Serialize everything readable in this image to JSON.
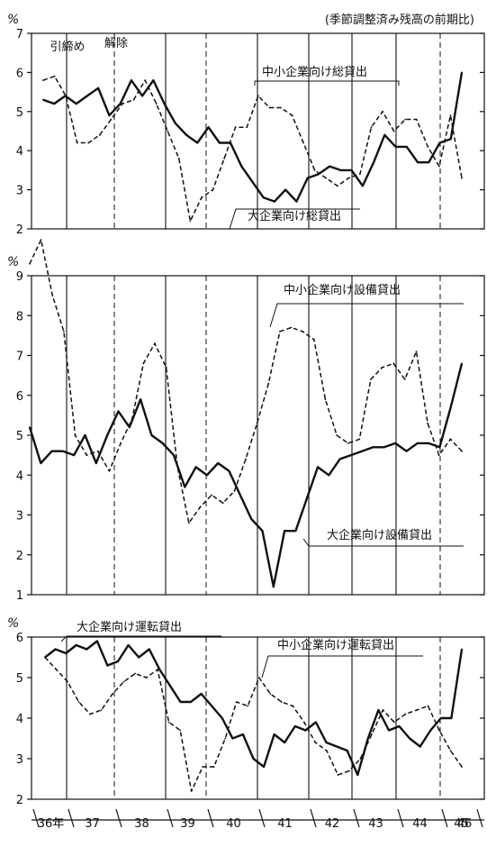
{
  "note": "(季節調整済み残高の前期比)",
  "chart_data": [
    {
      "type": "line",
      "title": "",
      "ylabel": "%",
      "ylim": [
        2,
        7
      ],
      "yticks": [
        2,
        3,
        4,
        5,
        6,
        7
      ],
      "event_labels": [
        "引締め",
        "解除"
      ],
      "series": [
        {
          "name": "中小企業向け総貸出",
          "style": "dashed",
          "values": [
            5.8,
            5.9,
            5.4,
            4.2,
            4.2,
            4.4,
            4.8,
            5.2,
            5.3,
            5.8,
            5.2,
            4.5,
            3.8,
            2.2,
            2.8,
            3.0,
            3.8,
            4.6,
            4.6,
            5.4,
            5.1,
            5.1,
            4.9,
            4.2,
            3.5,
            3.3,
            3.1,
            3.3,
            3.4,
            4.6,
            5.0,
            4.5,
            4.8,
            4.8,
            4.1,
            3.6,
            4.9,
            3.3
          ]
        },
        {
          "name": "大企業向け総貸出",
          "style": "solid",
          "values": [
            5.3,
            5.2,
            5.4,
            5.2,
            5.4,
            5.6,
            4.9,
            5.2,
            5.8,
            5.4,
            5.8,
            5.2,
            4.7,
            4.4,
            4.2,
            4.6,
            4.2,
            4.2,
            3.6,
            3.2,
            2.8,
            2.7,
            3.0,
            2.7,
            3.3,
            3.4,
            3.6,
            3.5,
            3.5,
            3.1,
            3.7,
            4.4,
            4.1,
            4.1,
            3.7,
            3.7,
            4.2,
            4.3,
            6.0
          ]
        }
      ]
    },
    {
      "type": "line",
      "title": "",
      "ylabel": "%",
      "ylim": [
        1,
        9
      ],
      "yticks": [
        1,
        2,
        3,
        4,
        5,
        6,
        7,
        8,
        9
      ],
      "series": [
        {
          "name": "中小企業向け設備貸出",
          "style": "dashed",
          "values": [
            9.3,
            9.9,
            8.5,
            7.6,
            5.0,
            4.5,
            4.6,
            4.1,
            4.8,
            5.4,
            6.8,
            7.3,
            6.7,
            4.2,
            2.8,
            3.2,
            3.5,
            3.3,
            3.6,
            4.4,
            5.3,
            6.3,
            7.6,
            7.7,
            7.6,
            7.4,
            5.9,
            5.0,
            4.8,
            4.9,
            6.4,
            6.7,
            6.8,
            6.4,
            7.1,
            5.3,
            4.5,
            4.9,
            4.6
          ]
        },
        {
          "name": "大企業向け設備貸出",
          "style": "solid",
          "values": [
            5.2,
            4.3,
            4.6,
            4.6,
            4.5,
            5.0,
            4.3,
            5.0,
            5.6,
            5.2,
            5.9,
            5.0,
            4.8,
            4.5,
            3.7,
            4.2,
            4.0,
            4.3,
            4.1,
            3.5,
            2.9,
            2.6,
            1.2,
            2.6,
            2.6,
            3.4,
            4.2,
            4.0,
            4.4,
            4.5,
            4.6,
            4.7,
            4.7,
            4.8,
            4.6,
            4.8,
            4.8,
            4.7,
            5.7,
            6.8
          ]
        }
      ]
    },
    {
      "type": "line",
      "title": "",
      "ylabel": "%",
      "ylim": [
        2,
        6
      ],
      "yticks": [
        2,
        3,
        4,
        5,
        6
      ],
      "series": [
        {
          "name": "大企業向け運転貸出",
          "style": "solid",
          "values": [
            5.5,
            5.7,
            5.6,
            5.8,
            5.7,
            5.9,
            5.3,
            5.4,
            5.8,
            5.5,
            5.7,
            5.2,
            4.8,
            4.4,
            4.4,
            4.6,
            4.3,
            4.0,
            3.5,
            3.6,
            3.0,
            2.8,
            3.6,
            3.4,
            3.8,
            3.7,
            3.9,
            3.4,
            3.3,
            3.2,
            2.6,
            3.5,
            4.2,
            3.7,
            3.8,
            3.5,
            3.3,
            3.7,
            4.0,
            4.0,
            5.7
          ]
        },
        {
          "name": "中小企業向け運転貸出",
          "style": "dashed",
          "values": [
            5.5,
            5.2,
            4.9,
            4.4,
            4.1,
            4.2,
            4.6,
            4.9,
            5.1,
            5.0,
            5.2,
            3.9,
            3.7,
            2.2,
            2.8,
            2.8,
            3.5,
            4.4,
            4.3,
            5.0,
            4.6,
            4.4,
            4.3,
            3.9,
            3.4,
            3.2,
            2.6,
            2.7,
            3.0,
            3.6,
            4.2,
            3.9,
            4.1,
            4.2,
            4.3,
            3.7,
            3.2,
            2.8
          ]
        }
      ]
    }
  ],
  "x_axis": {
    "labels": [
      "36年",
      "37",
      "38",
      "39",
      "40",
      "41",
      "42",
      "43",
      "44",
      "45",
      "46"
    ]
  }
}
